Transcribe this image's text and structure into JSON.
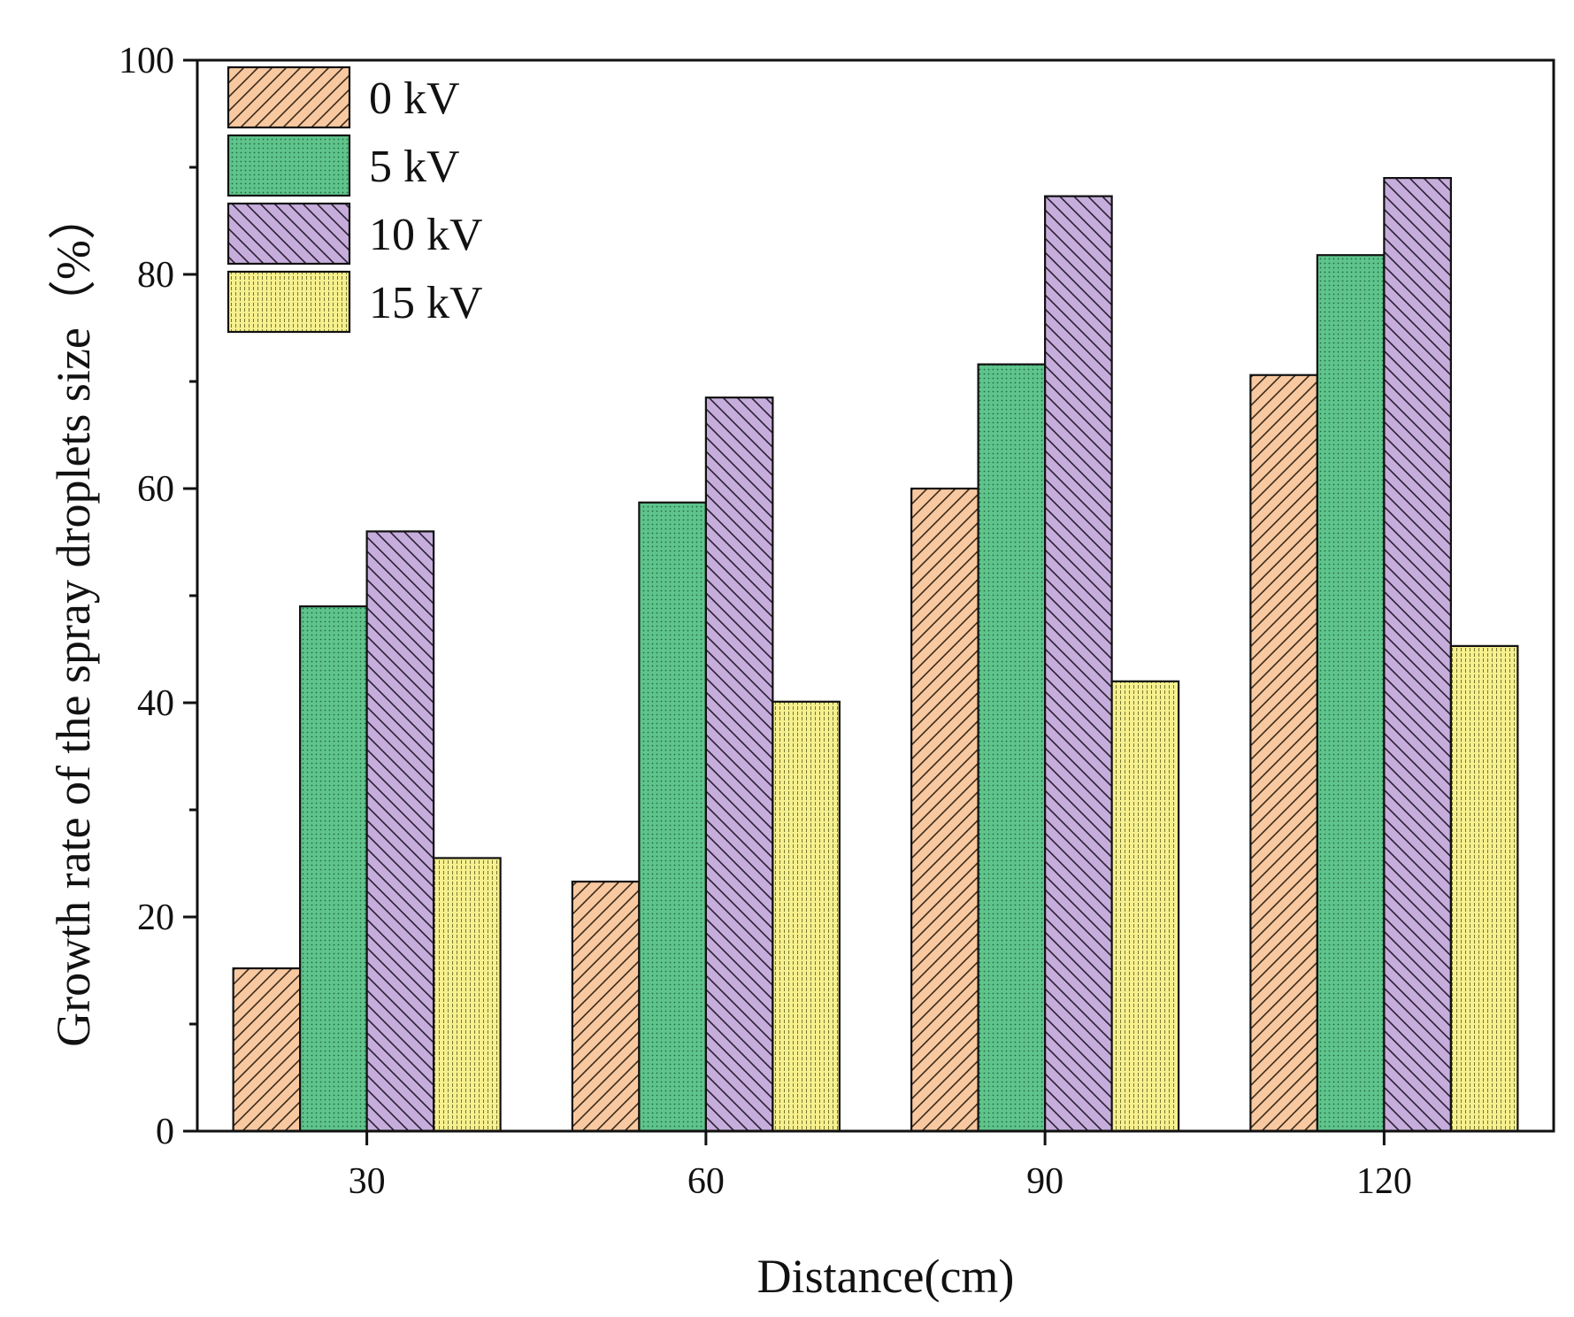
{
  "chart_data": {
    "type": "bar",
    "xlabel": "Distance(cm)",
    "ylabel": "Growth rate of the spray droplets size（%）",
    "categories": [
      "30",
      "60",
      "90",
      "120"
    ],
    "ylim": [
      0,
      100
    ],
    "yticks": [
      0,
      20,
      40,
      60,
      80,
      100
    ],
    "yticks_labels": [
      "0",
      "20",
      "40",
      "60",
      "80",
      "100"
    ],
    "legend_position": "top-left",
    "series": [
      {
        "name": "0 kV",
        "values": [
          15.2,
          23.3,
          60.0,
          70.6
        ],
        "color": "#f8c8a0",
        "pattern": "hatch-forward"
      },
      {
        "name": "5 kV",
        "values": [
          49.0,
          58.7,
          71.6,
          81.8
        ],
        "color": "#5fc48c",
        "pattern": "dots"
      },
      {
        "name": "10 kV",
        "values": [
          56.0,
          68.5,
          87.3,
          89.0
        ],
        "color": "#c6addb",
        "pattern": "hatch-back"
      },
      {
        "name": "15 kV",
        "values": [
          25.5,
          40.1,
          42.0,
          45.3
        ],
        "color": "#f6f08e",
        "pattern": "vlines"
      }
    ]
  }
}
